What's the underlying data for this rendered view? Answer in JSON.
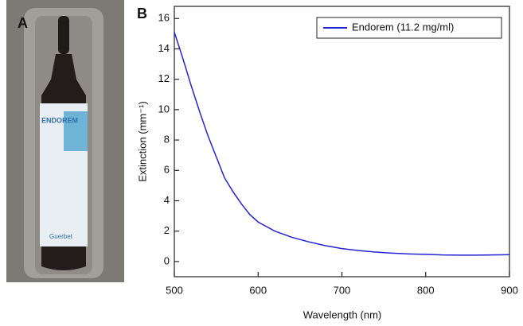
{
  "panel_a": {
    "label": "A",
    "vial_text": "ENDOREM",
    "vial_brand": "Guerbet"
  },
  "panel_b_label": "B",
  "chart_data": {
    "type": "line",
    "xlabel": "Wavelength (nm)",
    "ylabel": "Extinction (mm⁻¹)",
    "x": [
      500,
      510,
      520,
      530,
      540,
      550,
      560,
      570,
      580,
      590,
      600,
      620,
      640,
      660,
      680,
      700,
      720,
      740,
      760,
      780,
      800,
      820,
      840,
      860,
      880,
      900
    ],
    "series": [
      {
        "name": "Endorem (11.2 mg/ml)",
        "color": "#2222d8",
        "values": [
          15.1,
          13.4,
          11.6,
          9.9,
          8.3,
          6.9,
          5.5,
          4.6,
          3.8,
          3.1,
          2.6,
          2.0,
          1.6,
          1.3,
          1.05,
          0.85,
          0.72,
          0.62,
          0.55,
          0.5,
          0.47,
          0.43,
          0.42,
          0.42,
          0.43,
          0.45
        ]
      }
    ],
    "xlim": [
      500,
      900
    ],
    "xticks": [
      500,
      600,
      700,
      800,
      900
    ],
    "ylim": [
      -1,
      16.8
    ],
    "yticks": [
      0,
      2,
      4,
      6,
      8,
      10,
      12,
      14,
      16
    ],
    "legend": "upper right"
  }
}
